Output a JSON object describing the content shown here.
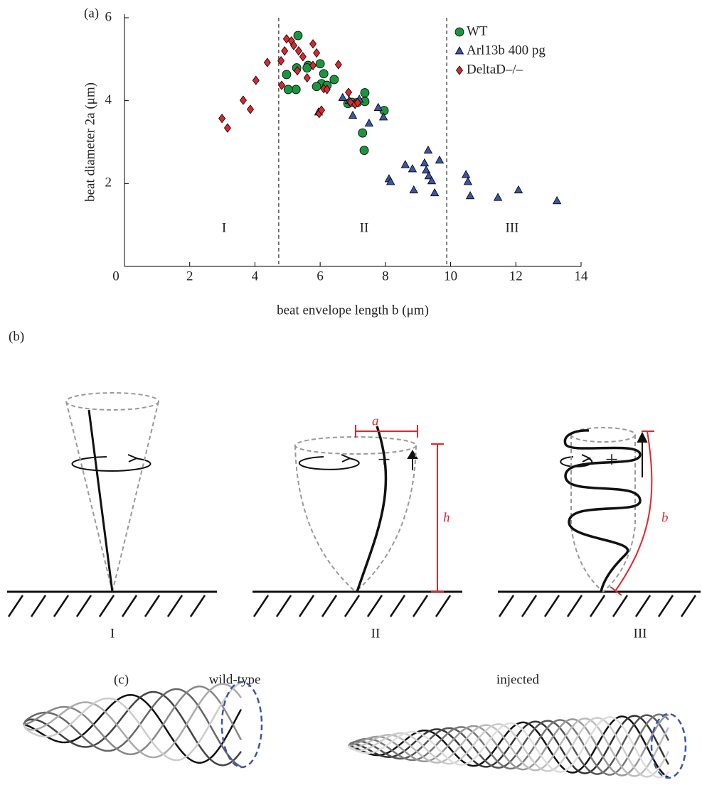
{
  "chart_data": {
    "type": "scatter",
    "panel_label": "(a)",
    "y_label": "beat diameter 2a (μm)",
    "x_label": "beat envelope length b (μm)",
    "xlim": [
      0,
      14
    ],
    "ylim": [
      0,
      6
    ],
    "xticks": [
      0,
      2,
      4,
      6,
      8,
      10,
      12,
      14
    ],
    "yticks": [
      2,
      4,
      6
    ],
    "vlines": [
      4.73,
      9.88
    ],
    "regions": [
      "I",
      "II",
      "III"
    ],
    "series": [
      {
        "name": "WT",
        "marker": "circle",
        "color": "#1a9641",
        "x": [
          5.32,
          5.28,
          5.26,
          4.97,
          5.02,
          5.63,
          5.6,
          6.0,
          6.04,
          6.11,
          6.21,
          6.43,
          5.89,
          6.85,
          6.98,
          7.15,
          7.37,
          7.37,
          7.96,
          7.3,
          7.35
        ],
        "y": [
          5.57,
          4.79,
          4.27,
          4.63,
          4.27,
          4.85,
          4.79,
          4.89,
          4.41,
          4.65,
          4.37,
          4.51,
          4.34,
          3.93,
          3.96,
          3.96,
          4.19,
          3.98,
          3.76,
          3.22,
          2.8
        ]
      },
      {
        "name": "Arl13b 400 pg",
        "marker": "triangle",
        "color": "#3a56a5",
        "x": [
          5.95,
          6.69,
          6.89,
          7.0,
          7.2,
          7.5,
          7.78,
          7.94,
          8.11,
          8.16,
          8.61,
          8.83,
          8.87,
          9.2,
          9.25,
          9.31,
          9.33,
          9.42,
          9.51,
          9.66,
          10.47,
          10.53,
          10.6,
          11.45,
          12.08,
          13.26
        ],
        "y": [
          3.72,
          4.07,
          4.0,
          3.64,
          4.03,
          3.45,
          3.83,
          3.6,
          2.11,
          2.04,
          2.45,
          2.35,
          1.84,
          2.49,
          2.32,
          2.8,
          2.18,
          2.06,
          1.77,
          2.56,
          2.21,
          2.04,
          1.7,
          1.66,
          1.84,
          1.58
        ]
      },
      {
        "name": "DeltaD–/–",
        "marker": "diamond",
        "color": "#e0262a",
        "x": [
          2.99,
          3.16,
          3.64,
          3.86,
          4.03,
          4.38,
          4.8,
          4.82,
          4.91,
          4.97,
          5.12,
          5.19,
          5.3,
          5.34,
          5.47,
          5.6,
          5.78,
          5.78,
          5.89,
          5.97,
          6.04,
          6.11,
          6.21,
          6.56,
          6.87,
          6.93,
          7.07,
          7.15
        ],
        "y": [
          3.57,
          3.34,
          4.01,
          3.79,
          4.49,
          4.92,
          4.96,
          4.37,
          5.2,
          5.49,
          5.44,
          5.33,
          4.72,
          5.2,
          5.06,
          4.55,
          4.85,
          5.37,
          5.15,
          3.69,
          3.77,
          4.29,
          4.27,
          4.87,
          4.2,
          3.96,
          3.91,
          3.95
        ]
      }
    ]
  },
  "diagram_b": {
    "panel_label": "(b)",
    "stages": [
      "I",
      "II",
      "III"
    ],
    "labels": {
      "a": "a",
      "h": "h",
      "b": "b"
    },
    "plus": "+"
  },
  "diagram_c": {
    "panel_label": "(c)",
    "titles": [
      "wild-type",
      "injected"
    ]
  }
}
